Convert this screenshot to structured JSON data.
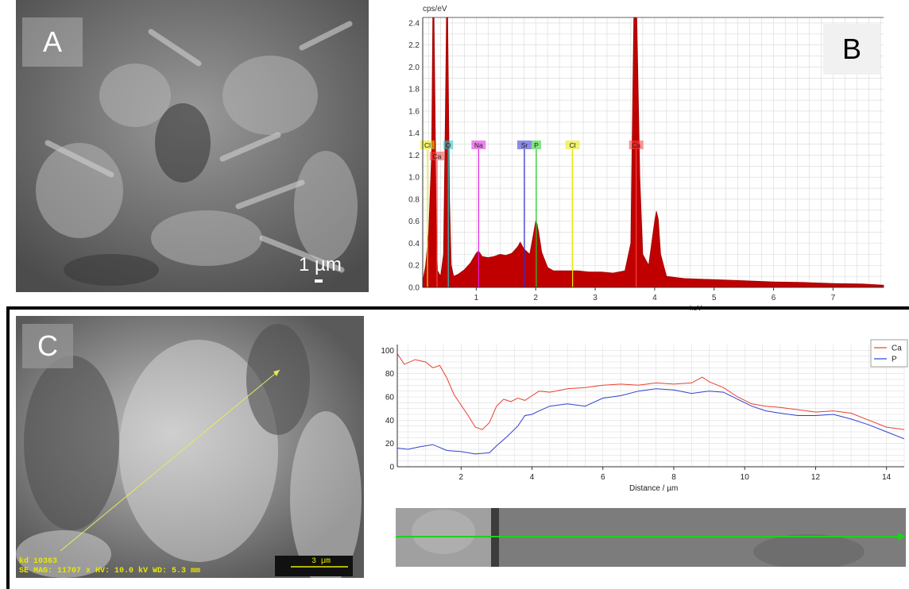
{
  "panels": {
    "a": {
      "label": "A",
      "scale_bar": "1 µm"
    },
    "b": {
      "label": "B"
    },
    "c": {
      "label": "C",
      "info_line1": "kd 10363",
      "info_line2": "SE  MAG: 11707 x  HV: 10.0 kV  WD: 5.3 mm",
      "scale_bar": "3 µm"
    }
  },
  "chart_data": [
    {
      "type": "line",
      "ylabel": "cps/eV",
      "xlabel": "keV",
      "xlim": [
        0.1,
        7.85
      ],
      "ylim": [
        0,
        2.45
      ],
      "x_ticks": [
        "1",
        "2",
        "3",
        "4",
        "5",
        "6",
        "7"
      ],
      "y_ticks": [
        "0.0",
        "0.2",
        "0.4",
        "0.6",
        "0.8",
        "1.0",
        "1.2",
        "1.4",
        "1.6",
        "1.8",
        "2.0",
        "2.2",
        "2.4"
      ],
      "grid": true,
      "spectrum": {
        "x": [
          0.1,
          0.15,
          0.2,
          0.25,
          0.27,
          0.29,
          0.31,
          0.33,
          0.35,
          0.4,
          0.45,
          0.48,
          0.5,
          0.52,
          0.55,
          0.58,
          0.62,
          0.7,
          0.8,
          0.9,
          1.0,
          1.04,
          1.1,
          1.2,
          1.3,
          1.4,
          1.5,
          1.6,
          1.7,
          1.74,
          1.8,
          1.9,
          1.95,
          2.0,
          2.02,
          2.05,
          2.1,
          2.2,
          2.3,
          2.5,
          2.7,
          2.9,
          3.1,
          3.3,
          3.5,
          3.6,
          3.65,
          3.7,
          3.75,
          3.8,
          3.9,
          4.0,
          4.03,
          4.06,
          4.1,
          4.2,
          4.5,
          5.0,
          5.5,
          6.0,
          6.5,
          7.0,
          7.5,
          7.85
        ],
        "y": [
          0.05,
          0.2,
          0.5,
          1.2,
          2.45,
          2.45,
          1.5,
          0.4,
          0.15,
          0.1,
          0.3,
          1.5,
          2.45,
          2.45,
          0.8,
          0.2,
          0.1,
          0.12,
          0.16,
          0.22,
          0.31,
          0.33,
          0.28,
          0.27,
          0.28,
          0.3,
          0.29,
          0.31,
          0.37,
          0.41,
          0.35,
          0.3,
          0.45,
          0.6,
          0.58,
          0.5,
          0.32,
          0.18,
          0.15,
          0.15,
          0.15,
          0.14,
          0.14,
          0.13,
          0.15,
          0.4,
          2.45,
          2.45,
          1.0,
          0.3,
          0.2,
          0.6,
          0.69,
          0.62,
          0.3,
          0.1,
          0.08,
          0.07,
          0.06,
          0.05,
          0.045,
          0.035,
          0.03,
          0.02
        ],
        "color": "#c00000"
      },
      "element_markers": [
        {
          "label": "Cl",
          "x": 0.18,
          "color": "#e8e800"
        },
        {
          "label": "Ca",
          "x": 0.34,
          "color": "#ff4040"
        },
        {
          "label": "O",
          "x": 0.53,
          "color": "#20c8c8"
        },
        {
          "label": "Na",
          "x": 1.04,
          "color": "#e020e0"
        },
        {
          "label": "Sr",
          "x": 1.81,
          "color": "#3030d0"
        },
        {
          "label": "P",
          "x": 2.01,
          "color": "#20d020"
        },
        {
          "label": "Cl",
          "x": 2.62,
          "color": "#e8e800"
        },
        {
          "label": "Ca",
          "x": 3.69,
          "color": "#ff4040"
        }
      ]
    },
    {
      "type": "line",
      "xlabel": "Distance / µm",
      "ylabel": "",
      "xlim": [
        0.2,
        14.5
      ],
      "ylim": [
        0,
        105
      ],
      "x_ticks": [
        "2",
        "4",
        "6",
        "8",
        "10",
        "12",
        "14"
      ],
      "y_ticks": [
        "0",
        "20",
        "40",
        "60",
        "80",
        "100"
      ],
      "grid": true,
      "legend": "top-right",
      "series": [
        {
          "name": "Ca",
          "color": "#e84030",
          "x": [
            0.2,
            0.4,
            0.7,
            1.0,
            1.2,
            1.4,
            1.6,
            1.8,
            2.0,
            2.2,
            2.4,
            2.6,
            2.8,
            3.0,
            3.2,
            3.4,
            3.6,
            3.8,
            4.0,
            4.2,
            4.5,
            5.0,
            5.5,
            6.0,
            6.5,
            7.0,
            7.5,
            8.0,
            8.5,
            8.8,
            9.0,
            9.4,
            9.8,
            10.2,
            10.6,
            11.0,
            11.5,
            12.0,
            12.5,
            13.0,
            13.5,
            14.0,
            14.5
          ],
          "y": [
            97,
            88,
            92,
            90,
            85,
            87,
            76,
            62,
            53,
            44,
            34,
            32,
            38,
            52,
            58,
            56,
            59,
            57,
            61,
            65,
            64,
            67,
            68,
            70,
            71,
            70,
            72,
            71,
            72,
            77,
            73,
            68,
            60,
            54,
            52,
            51,
            49,
            47,
            48,
            46,
            40,
            34,
            32
          ]
        },
        {
          "name": "P",
          "color": "#3040d0",
          "x": [
            0.2,
            0.5,
            0.8,
            1.2,
            1.6,
            2.0,
            2.4,
            2.8,
            3.0,
            3.3,
            3.6,
            3.8,
            4.0,
            4.2,
            4.5,
            5.0,
            5.5,
            6.0,
            6.5,
            7.0,
            7.5,
            8.0,
            8.5,
            9.0,
            9.4,
            9.8,
            10.2,
            10.6,
            11.0,
            11.5,
            12.0,
            12.5,
            13.0,
            13.5,
            14.0,
            14.5
          ],
          "y": [
            16,
            15,
            17,
            19,
            14,
            13,
            11,
            12,
            18,
            26,
            35,
            44,
            45,
            48,
            52,
            54,
            52,
            59,
            61,
            65,
            67,
            66,
            63,
            65,
            64,
            58,
            52,
            48,
            46,
            44,
            44,
            45,
            41,
            36,
            30,
            24
          ]
        }
      ]
    }
  ]
}
